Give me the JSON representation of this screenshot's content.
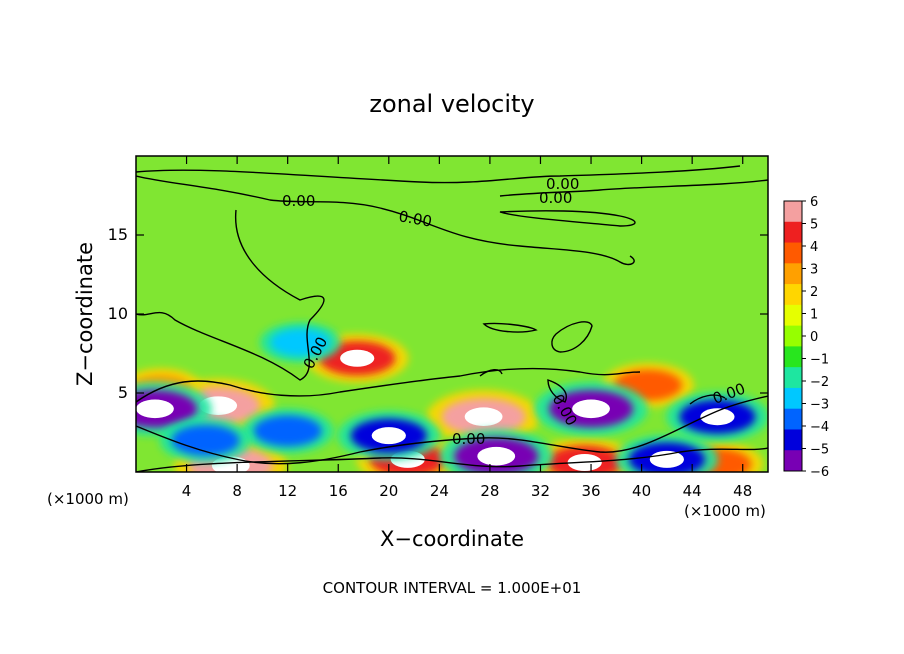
{
  "chart_data": {
    "type": "heatmap",
    "title": "zonal velocity",
    "xlabel": "X−coordinate",
    "ylabel": "Z−coordinate",
    "x_unit_left": "(×1000 m)",
    "x_unit_right": "(×1000 m)",
    "footer": "CONTOUR INTERVAL = 1.000E+01",
    "xlim": [
      0,
      50
    ],
    "ylim": [
      0,
      20
    ],
    "x_ticks": [
      "4",
      "8",
      "12",
      "16",
      "20",
      "24",
      "28",
      "32",
      "36",
      "40",
      "44",
      "48"
    ],
    "y_ticks": [
      "5",
      "10",
      "15"
    ],
    "colorbar": {
      "range": [
        -6,
        6
      ],
      "tick_labels": [
        "6",
        "5",
        "4",
        "3",
        "2",
        "1",
        "0",
        "−1",
        "−2",
        "−3",
        "−4",
        "−5",
        "−6"
      ],
      "colors": [
        "#f4a0a0",
        "#ee2020",
        "#ff5a00",
        "#ffa000",
        "#ffd600",
        "#e6ff00",
        "#96ff00",
        "#28e61e",
        "#1ee6a0",
        "#00c8ff",
        "#0064ff",
        "#0000dc",
        "#7800b4"
      ]
    },
    "contour_labels": [
      "0.00",
      "0.00",
      "0.00",
      "0.00",
      "0.00",
      "0.00",
      "0.00",
      "0.00"
    ],
    "field_blobs": [
      {
        "x": 6.5,
        "z": 4.2,
        "value": 6
      },
      {
        "x": 17.5,
        "z": 7.2,
        "value": 5
      },
      {
        "x": 27.5,
        "z": 3.5,
        "value": 6
      },
      {
        "x": 40.5,
        "z": 5.5,
        "value": 4
      },
      {
        "x": 35.5,
        "z": 0.6,
        "value": 5
      },
      {
        "x": 7.5,
        "z": 0.4,
        "value": 6
      },
      {
        "x": 21.5,
        "z": 0.8,
        "value": 5
      },
      {
        "x": 46,
        "z": 0.5,
        "value": 4
      },
      {
        "x": 2,
        "z": 5.3,
        "value": 3
      },
      {
        "x": 1.5,
        "z": 4.0,
        "value": -6
      },
      {
        "x": 36,
        "z": 4.0,
        "value": -6
      },
      {
        "x": 12,
        "z": 2.6,
        "value": -4
      },
      {
        "x": 20,
        "z": 2.3,
        "value": -5
      },
      {
        "x": 28.5,
        "z": 1.0,
        "value": -6
      },
      {
        "x": 42,
        "z": 0.8,
        "value": -5
      },
      {
        "x": 46,
        "z": 3.5,
        "value": -5
      },
      {
        "x": 13,
        "z": 8.2,
        "value": -3
      },
      {
        "x": 5.5,
        "z": 2.0,
        "value": -4
      }
    ]
  }
}
